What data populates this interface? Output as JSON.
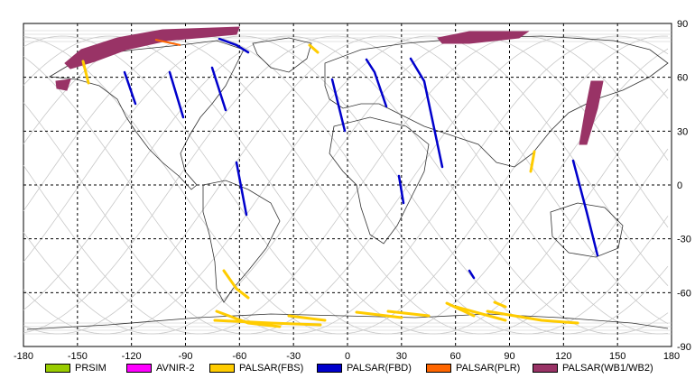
{
  "map": {
    "x_ticks": [
      "-180",
      "-150",
      "-120",
      "-90",
      "-60",
      "-30",
      "0",
      "30",
      "60",
      "90",
      "120",
      "150",
      "180"
    ],
    "y_ticks": [
      "90",
      "60",
      "30",
      "0",
      "-30",
      "-60",
      "-90"
    ],
    "lon_range": [
      -180,
      180
    ],
    "lat_range": [
      -90,
      90
    ],
    "grid": "dashed",
    "colors": {
      "PRSIM": "#99cc00",
      "AVNIR-2": "#ff00ff",
      "PALSAR(FBS)": "#ffcc00",
      "PALSAR(FBD)": "#0000cc",
      "PALSAR(PLR)": "#ff6600",
      "PALSAR(WB1/WB2)": "#993366"
    }
  },
  "legend": [
    {
      "label": "PRSIM",
      "color": "#99cc00"
    },
    {
      "label": "AVNIR-2",
      "color": "#ff00ff"
    },
    {
      "label": "PALSAR(FBS)",
      "color": "#ffcc00"
    },
    {
      "label": "PALSAR(FBD)",
      "color": "#0000cc"
    },
    {
      "label": "PALSAR(PLR)",
      "color": "#ff6600"
    },
    {
      "label": "PALSAR(WB1/WB2)",
      "color": "#993366"
    }
  ]
}
